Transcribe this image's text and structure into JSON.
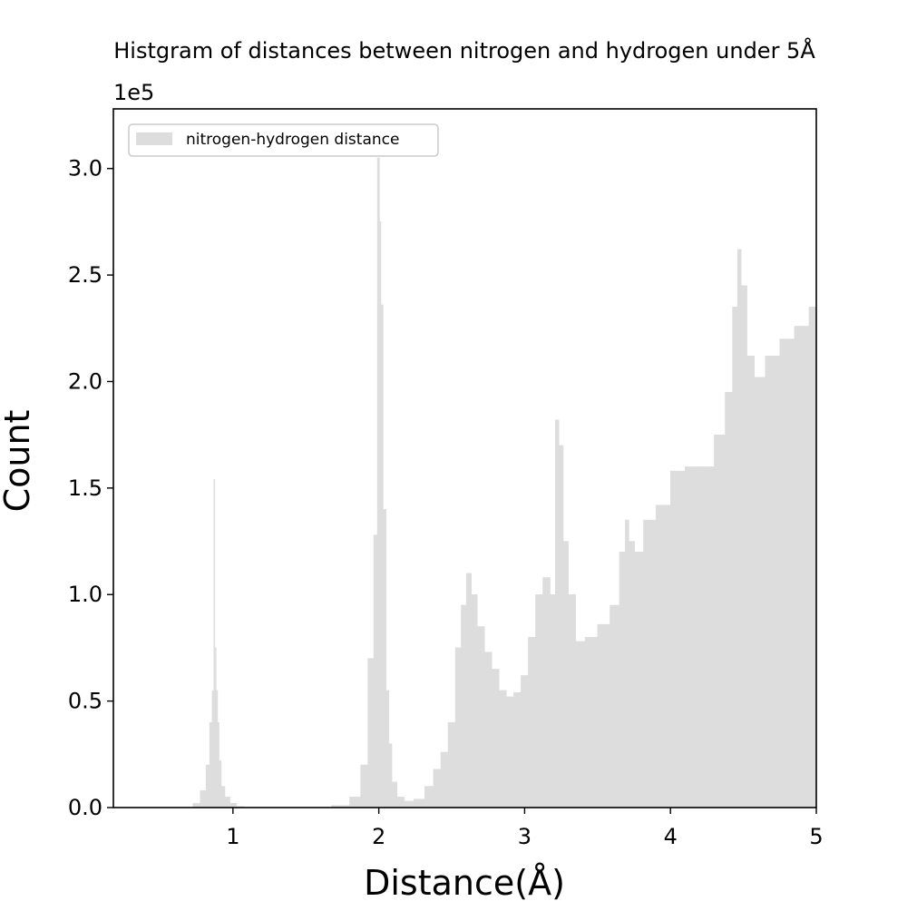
{
  "chart_data": {
    "type": "bar",
    "title": "Histgram of distances between nitrogen and hydrogen under 5Å",
    "xlabel": "Distance(Å)",
    "ylabel": "Count",
    "offset_label": "1e5",
    "xlim": [
      0.18,
      5.0
    ],
    "ylim": [
      0,
      3.28
    ],
    "x_ticks": [
      1,
      2,
      3,
      4,
      5
    ],
    "x_tick_labels": [
      "1",
      "2",
      "3",
      "4",
      "5"
    ],
    "y_ticks": [
      0.0,
      0.5,
      1.0,
      1.5,
      2.0,
      2.5,
      3.0
    ],
    "y_tick_labels": [
      "0.0",
      "0.5",
      "1.0",
      "1.5",
      "2.0",
      "2.5",
      "3.0"
    ],
    "grid": false,
    "legend": {
      "position": "upper-left",
      "entries": [
        "nitrogen-hydrogen distance"
      ]
    },
    "colors": {
      "bars": "#dddddd",
      "axes": "#000000"
    },
    "series": [
      {
        "name": "nitrogen-hydrogen distance",
        "x": [
          0.7,
          0.75,
          0.8,
          0.83,
          0.85,
          0.865,
          0.872,
          0.88,
          0.89,
          0.9,
          0.91,
          0.93,
          0.96,
          1.0,
          1.05,
          1.1,
          1.6,
          1.75,
          1.85,
          1.9,
          1.95,
          1.98,
          2.0,
          2.01,
          2.02,
          2.04,
          2.06,
          2.08,
          2.1,
          2.15,
          2.2,
          2.28,
          2.35,
          2.4,
          2.45,
          2.5,
          2.55,
          2.58,
          2.62,
          2.65,
          2.7,
          2.75,
          2.8,
          2.85,
          2.9,
          2.95,
          3.0,
          3.05,
          3.1,
          3.15,
          3.2,
          3.22,
          3.25,
          3.28,
          3.32,
          3.38,
          3.45,
          3.55,
          3.62,
          3.68,
          3.7,
          3.73,
          3.78,
          3.85,
          3.95,
          4.05,
          4.15,
          4.25,
          4.35,
          4.4,
          4.45,
          4.47,
          4.5,
          4.55,
          4.6,
          4.7,
          4.8,
          4.9,
          5.0
        ],
        "values": [
          0.0,
          0.02,
          0.08,
          0.2,
          0.4,
          0.55,
          1.54,
          0.75,
          0.55,
          0.4,
          0.22,
          0.1,
          0.05,
          0.02,
          0.005,
          0.0,
          0.0,
          0.01,
          0.05,
          0.2,
          0.7,
          1.28,
          3.05,
          2.75,
          2.36,
          1.4,
          0.55,
          0.3,
          0.12,
          0.05,
          0.03,
          0.04,
          0.1,
          0.18,
          0.26,
          0.4,
          0.75,
          0.95,
          1.1,
          1.0,
          0.85,
          0.73,
          0.65,
          0.55,
          0.52,
          0.54,
          0.62,
          0.8,
          1.0,
          1.08,
          1.0,
          1.82,
          1.7,
          1.25,
          1.0,
          0.78,
          0.8,
          0.86,
          0.95,
          1.2,
          1.35,
          1.25,
          1.2,
          1.35,
          1.42,
          1.58,
          1.6,
          1.6,
          1.75,
          1.95,
          2.35,
          2.62,
          2.45,
          2.12,
          2.02,
          2.12,
          2.2,
          2.26,
          2.35
        ]
      }
    ]
  }
}
